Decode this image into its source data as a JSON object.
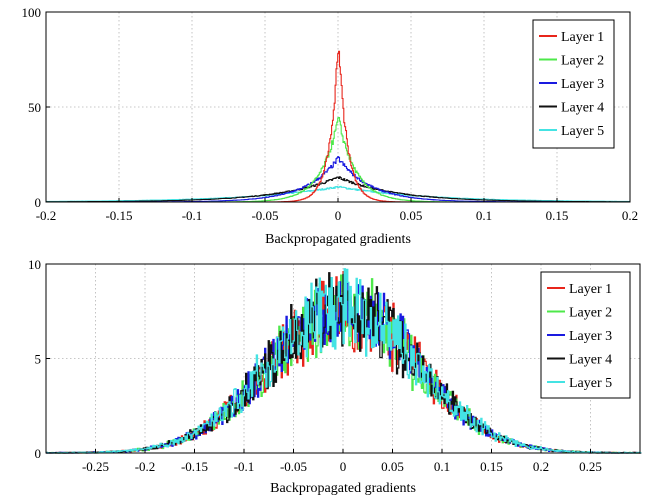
{
  "chart_data": [
    {
      "type": "line",
      "title": "",
      "xlabel": "Backpropagated gradients",
      "ylabel": "",
      "xlim": [
        -0.2,
        0.2
      ],
      "ylim": [
        0,
        100
      ],
      "xticks": [
        -0.2,
        -0.15,
        -0.1,
        -0.05,
        0,
        0.05,
        0.1,
        0.15,
        0.2
      ],
      "xtick_labels": [
        "-0.2",
        "-0.15",
        "-0.1",
        "-0.05",
        "0",
        "0.05",
        "0.1",
        "0.15",
        "0.2"
      ],
      "yticks": [
        0,
        50,
        100
      ],
      "ytick_labels": [
        "0",
        "50",
        "100"
      ],
      "grid": true,
      "legend_position": "top-right",
      "series": [
        {
          "name": "Layer 1",
          "color": "#e8251b",
          "peak": 85,
          "width": 0.006
        },
        {
          "name": "Layer 2",
          "color": "#4de84a",
          "peak": 44,
          "width": 0.012
        },
        {
          "name": "Layer 3",
          "color": "#1a1ae0",
          "peak": 23,
          "width": 0.022
        },
        {
          "name": "Layer 4",
          "color": "#111111",
          "peak": 13,
          "width": 0.04
        },
        {
          "name": "Layer 5",
          "color": "#44e3e3",
          "peak": 8,
          "width": 0.06
        }
      ]
    },
    {
      "type": "line",
      "title": "",
      "xlabel": "Backpropagated gradients",
      "ylabel": "",
      "xlim": [
        -0.3,
        0.3
      ],
      "ylim": [
        0,
        10
      ],
      "xticks": [
        -0.25,
        -0.2,
        -0.15,
        -0.1,
        -0.05,
        0,
        0.05,
        0.1,
        0.15,
        0.2,
        0.25
      ],
      "xtick_labels": [
        "-0.25",
        "-0.2",
        "-0.15",
        "-0.1",
        "-0.05",
        "0",
        "0.05",
        "0.1",
        "0.15",
        "0.2",
        "0.25"
      ],
      "yticks": [
        0,
        5,
        10
      ],
      "ytick_labels": [
        "0",
        "5",
        "10"
      ],
      "grid": true,
      "legend_position": "top-right",
      "series": [
        {
          "name": "Layer 1",
          "color": "#e8251b",
          "peak": 7.5,
          "width": 0.075
        },
        {
          "name": "Layer 2",
          "color": "#4de84a",
          "peak": 7.6,
          "width": 0.075
        },
        {
          "name": "Layer 3",
          "color": "#1a1ae0",
          "peak": 7.7,
          "width": 0.075
        },
        {
          "name": "Layer 4",
          "color": "#111111",
          "peak": 7.7,
          "width": 0.075
        },
        {
          "name": "Layer 5",
          "color": "#44e3e3",
          "peak": 7.8,
          "width": 0.075
        }
      ]
    }
  ]
}
